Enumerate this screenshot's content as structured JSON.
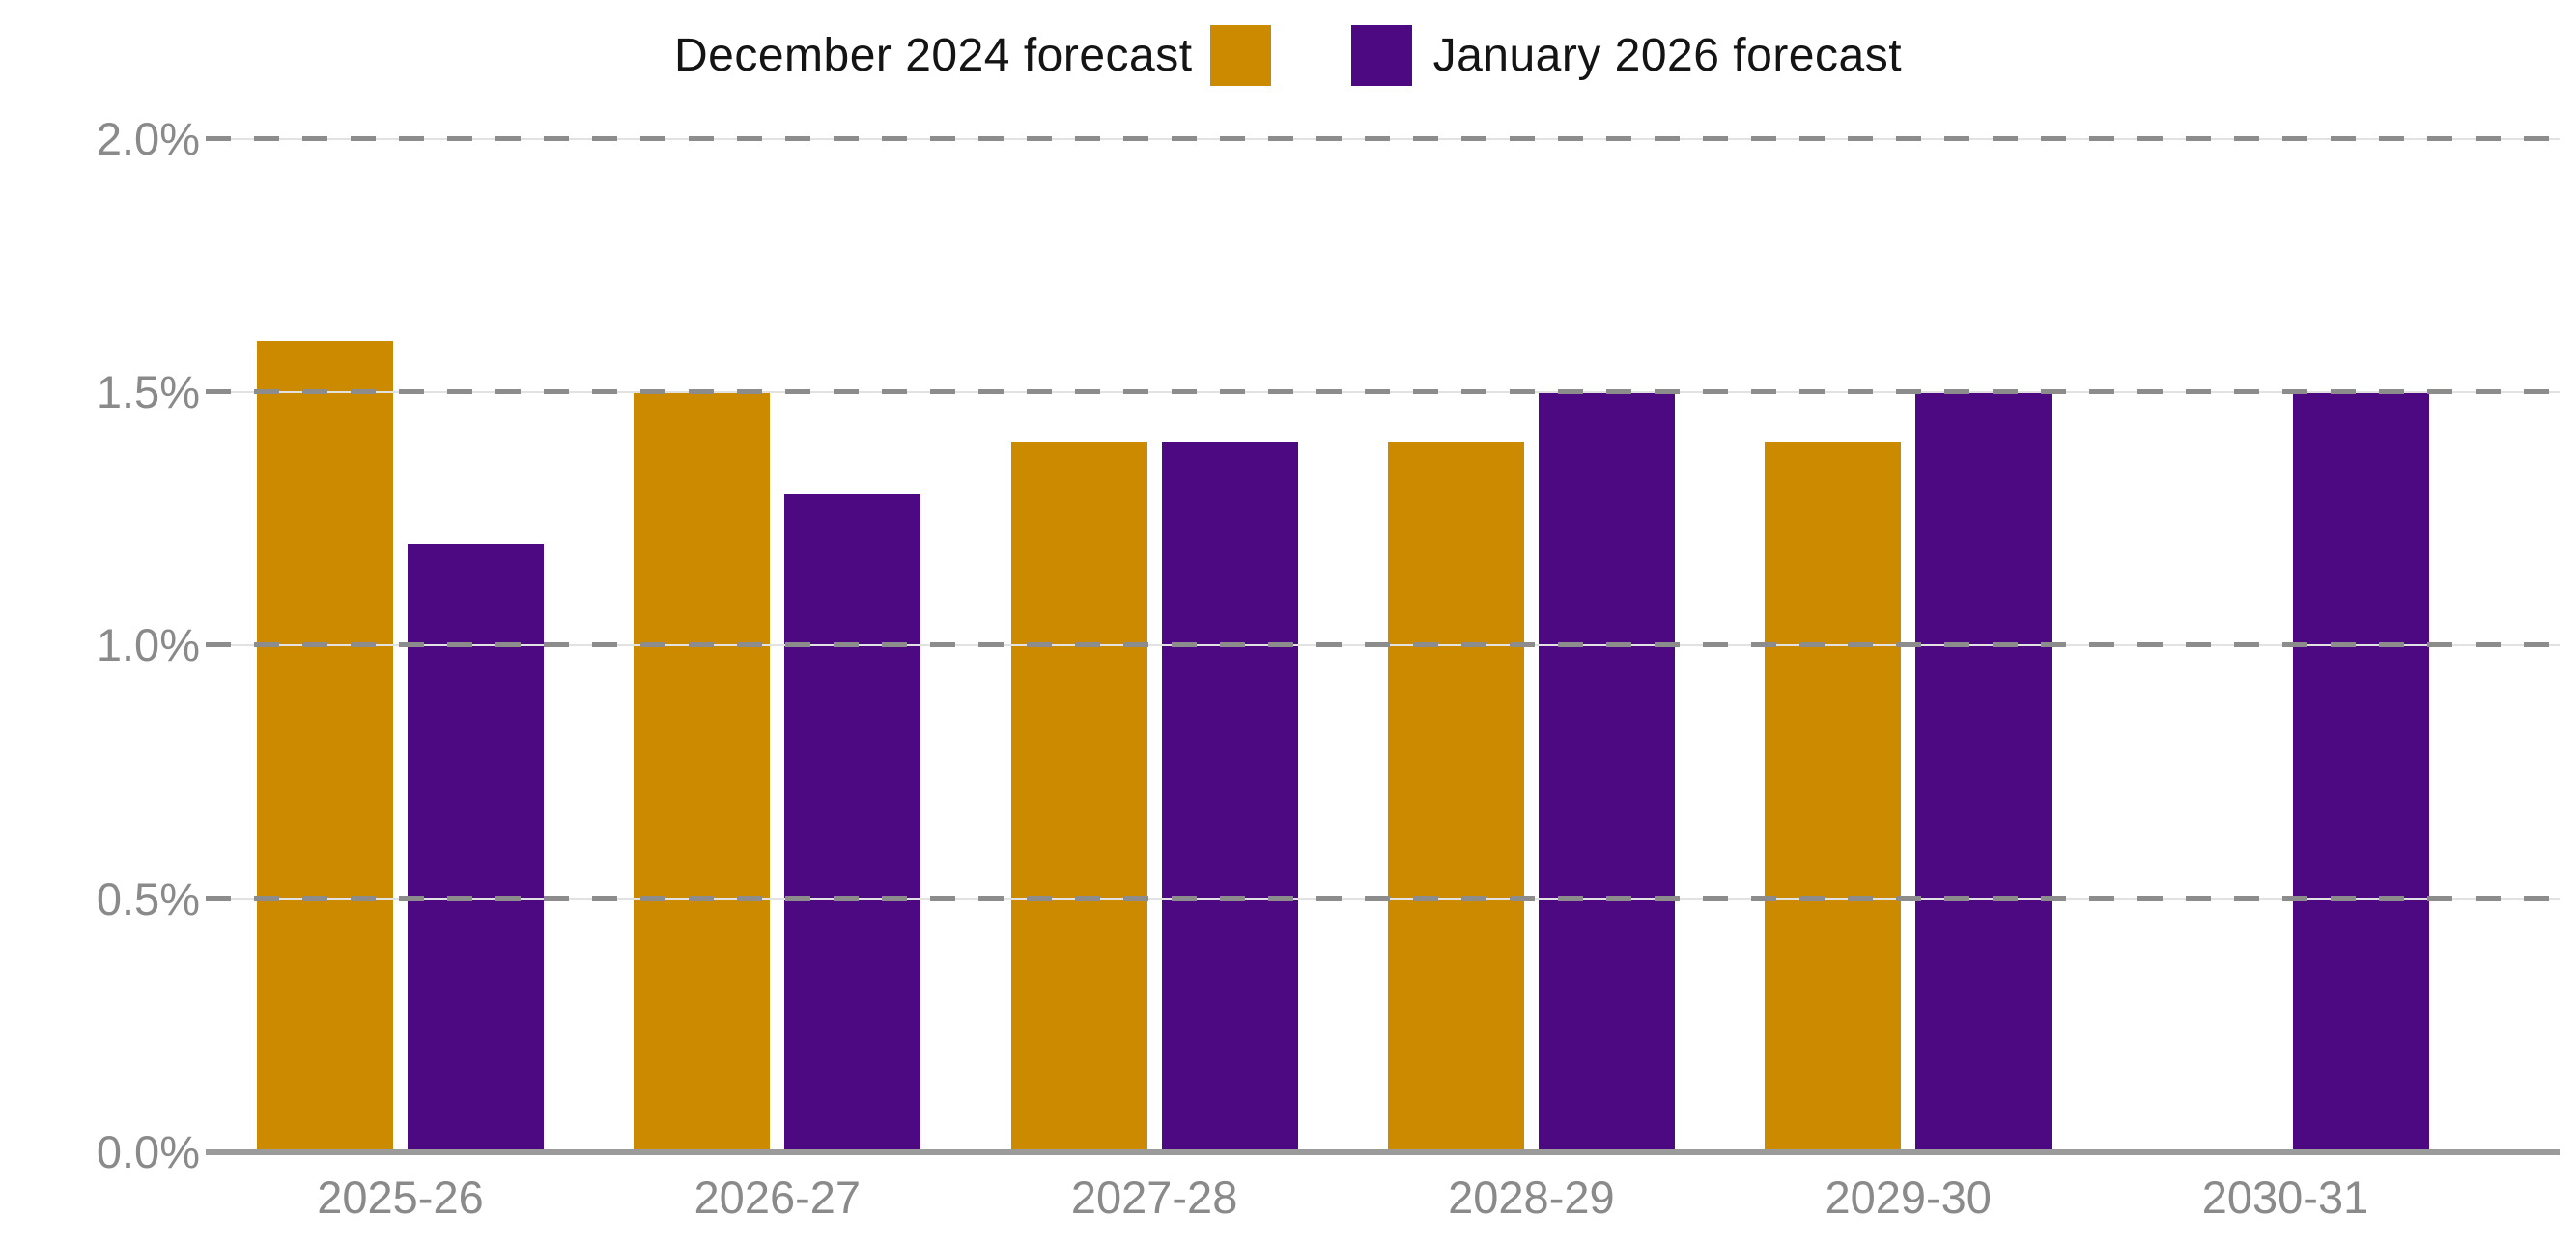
{
  "chart_data": {
    "type": "bar",
    "title": "",
    "categories": [
      "2025-26",
      "2026-27",
      "2027-28",
      "2028-29",
      "2029-30",
      "2030-31"
    ],
    "series": [
      {
        "name": "December 2024 forecast",
        "color": "#CC8A00",
        "values": [
          1.6,
          1.5,
          1.4,
          1.4,
          1.4,
          null
        ]
      },
      {
        "name": "January 2026 forecast",
        "color": "#4C0981",
        "values": [
          1.2,
          1.3,
          1.4,
          1.5,
          1.5,
          1.5
        ]
      }
    ],
    "unit": "%",
    "ylim": [
      0.0,
      2.0
    ],
    "yticks": [
      {
        "value": 2.0,
        "label": "2.0%"
      },
      {
        "value": 1.5,
        "label": "1.5%"
      },
      {
        "value": 1.0,
        "label": "1.0%"
      },
      {
        "value": 0.5,
        "label": "0.5%"
      },
      {
        "value": 0.0,
        "label": "0.0%"
      }
    ],
    "grid": {
      "horizontal": true,
      "style": "dashed",
      "dash_color": "#8C8C8C",
      "hairline_color": "#E2E2E2"
    },
    "legend_position": "top-center",
    "legend_text_color": "#141414",
    "axis_label_color": "#8A8A8A",
    "axis_line_color": "#9B9B9B",
    "background": "#FFFFFF"
  }
}
